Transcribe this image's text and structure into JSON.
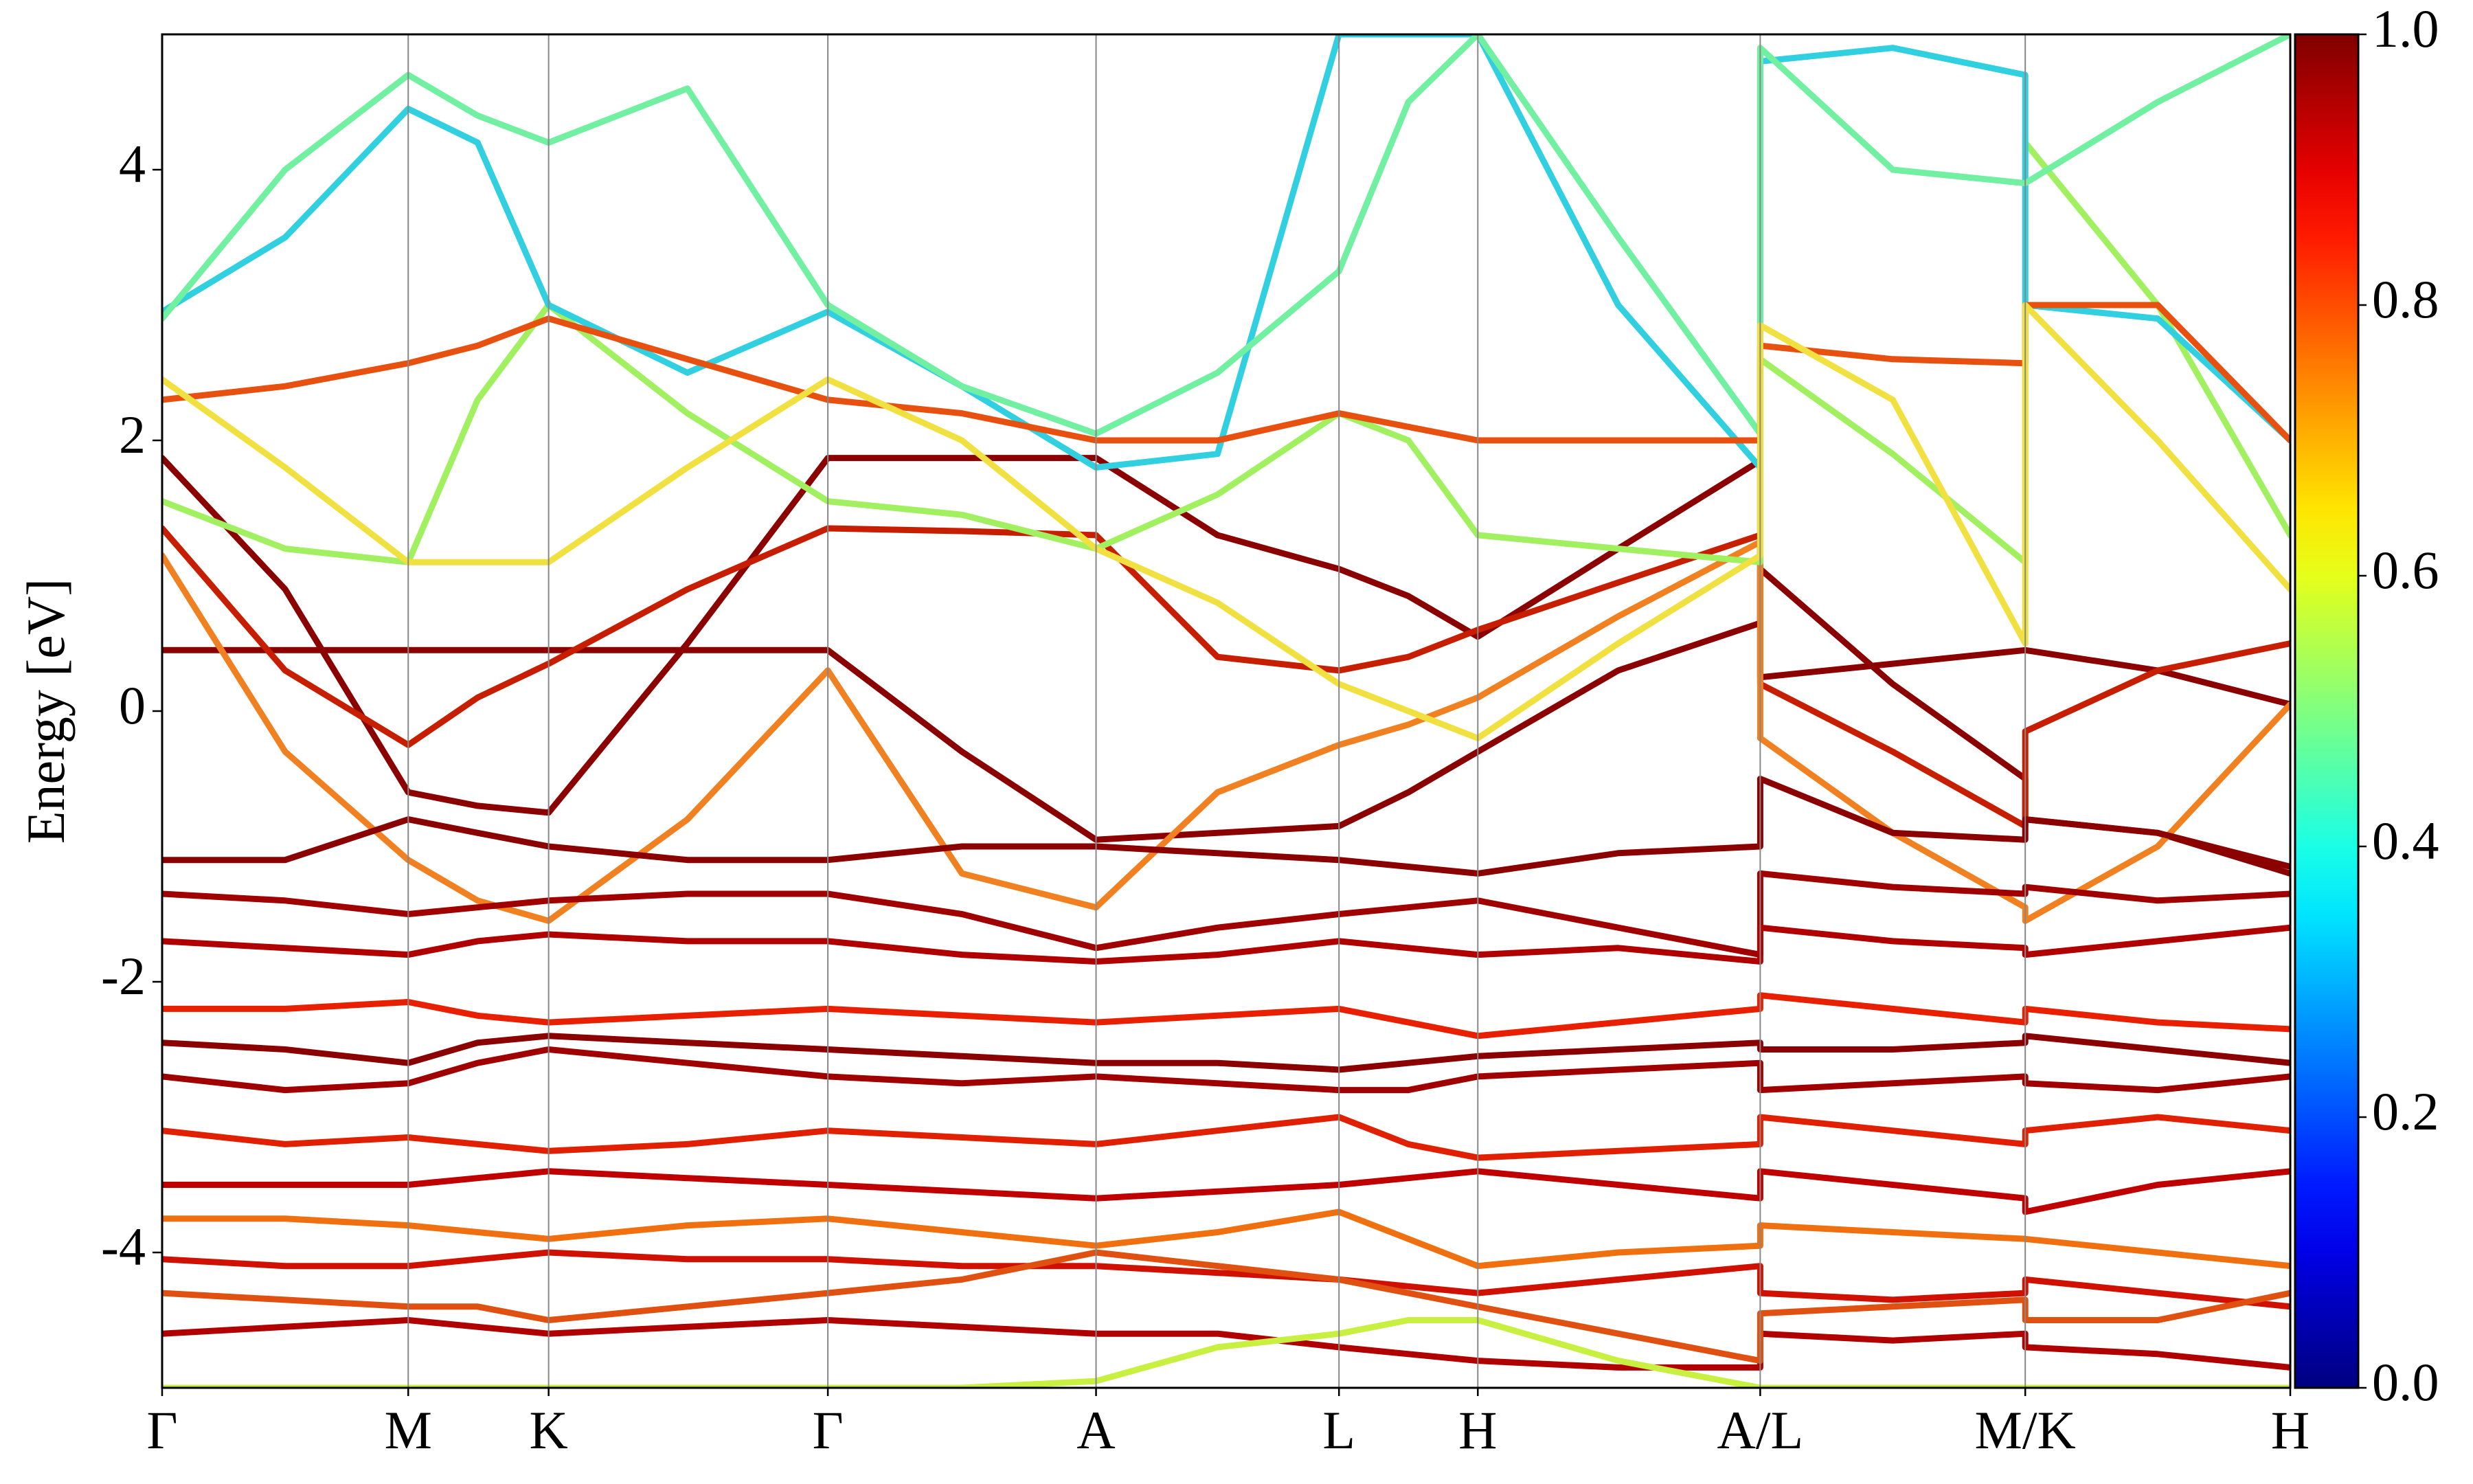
{
  "chart_data": {
    "type": "line",
    "ylabel": "Energy [eV]",
    "x": [
      0,
      78,
      156,
      200,
      245,
      333,
      422,
      507,
      592,
      669,
      746,
      790,
      834,
      923,
      1013,
      1013,
      1097,
      1181,
      1181,
      1265,
      1349
    ],
    "xlim": [
      0,
      1349
    ],
    "xticks": [
      {
        "value": 0,
        "label": "Γ"
      },
      {
        "value": 156,
        "label": "M"
      },
      {
        "value": 245,
        "label": "K"
      },
      {
        "value": 422,
        "label": "Γ"
      },
      {
        "value": 592,
        "label": "A"
      },
      {
        "value": 746,
        "label": "L"
      },
      {
        "value": 834,
        "label": "H"
      },
      {
        "value": 1013,
        "label": "A/L"
      },
      {
        "value": 1181,
        "label": "M/K"
      },
      {
        "value": 1349,
        "label": "H"
      }
    ],
    "ylim": [
      -5,
      5
    ],
    "yticks": [
      -4,
      -2,
      0,
      2,
      4
    ],
    "grid": true,
    "colormap": "jet",
    "zlim": [
      0,
      1
    ],
    "zticks": [
      {
        "value": 0,
        "label": "0.0"
      },
      0.2,
      0.4,
      0.6,
      0.8,
      {
        "value": 1,
        "label": "1.0"
      }
    ],
    "series": [
      {
        "color": "#8b0000",
        "values": [
          1.87,
          0.9,
          -0.6,
          -0.7,
          -0.75,
          0.5,
          1.87,
          1.87,
          1.87,
          1.3,
          1.05,
          0.85,
          0.55,
          1.2,
          1.85,
          0.25,
          0.35,
          0.45,
          0.45,
          0.3,
          0.05
        ]
      },
      {
        "color": "#8b0000",
        "values": [
          0.45,
          0.45,
          0.45,
          0.45,
          0.45,
          0.45,
          0.45,
          -0.3,
          -0.95,
          -0.9,
          -0.85,
          -0.6,
          -0.3,
          0.3,
          0.65,
          1.05,
          0.2,
          -0.5,
          -0.8,
          -0.9,
          -1.2
        ]
      },
      {
        "color": "#c81e00",
        "values": [
          1.35,
          0.3,
          -0.25,
          0.1,
          0.35,
          0.9,
          1.35,
          1.33,
          1.3,
          0.4,
          0.3,
          0.4,
          0.6,
          0.95,
          1.3,
          0.2,
          -0.3,
          -0.85,
          -0.15,
          0.3,
          0.5
        ]
      },
      {
        "color": "#f08020",
        "values": [
          1.15,
          -0.3,
          -1.1,
          -1.4,
          -1.55,
          -0.8,
          0.3,
          -1.2,
          -1.45,
          -0.6,
          -0.25,
          -0.1,
          0.1,
          0.7,
          1.25,
          -0.2,
          -0.9,
          -1.45,
          -1.55,
          -1.0,
          0.05
        ]
      },
      {
        "color": "#a0f060",
        "values": [
          1.55,
          1.2,
          1.1,
          2.3,
          3.0,
          2.2,
          1.55,
          1.45,
          1.2,
          1.6,
          2.2,
          2.0,
          1.3,
          1.2,
          1.1,
          2.6,
          1.9,
          1.1,
          4.2,
          3.0,
          1.3
        ]
      },
      {
        "color": "#30d0e0",
        "values": [
          2.95,
          3.5,
          4.45,
          4.2,
          3.0,
          2.5,
          2.95,
          2.4,
          1.8,
          1.9,
          5.0,
          5.0,
          5.0,
          3.0,
          1.8,
          4.8,
          4.9,
          4.7,
          3.0,
          2.9,
          2.0
        ]
      },
      {
        "color": "#70f0a0",
        "values": [
          2.9,
          4.0,
          4.7,
          4.4,
          4.2,
          4.6,
          3.0,
          2.4,
          2.05,
          2.5,
          3.25,
          4.5,
          5.0,
          3.5,
          2.05,
          4.9,
          4.0,
          3.9,
          3.9,
          4.5,
          5.0
        ]
      },
      {
        "color": "#e85010",
        "values": [
          2.3,
          2.4,
          2.57,
          2.7,
          2.9,
          2.6,
          2.3,
          2.2,
          2.0,
          2.0,
          2.2,
          2.1,
          2.0,
          2.0,
          2.0,
          2.7,
          2.6,
          2.57,
          3.0,
          3.0,
          2.0
        ]
      },
      {
        "color": "#f0e040",
        "values": [
          2.45,
          1.8,
          1.1,
          1.1,
          1.1,
          1.8,
          2.45,
          2.0,
          1.2,
          0.8,
          0.2,
          0.0,
          -0.2,
          0.5,
          1.15,
          2.85,
          2.3,
          0.5,
          3.0,
          2.0,
          0.9
        ]
      },
      {
        "color": "#8b0000",
        "values": [
          -1.1,
          -1.1,
          -0.8,
          -0.9,
          -1.0,
          -1.1,
          -1.1,
          -1.0,
          -1.0,
          -1.05,
          -1.1,
          -1.15,
          -1.2,
          -1.05,
          -1.0,
          -0.5,
          -0.9,
          -0.95,
          -0.8,
          -0.9,
          -1.15
        ]
      },
      {
        "color": "#a00000",
        "values": [
          -1.35,
          -1.4,
          -1.5,
          -1.45,
          -1.4,
          -1.35,
          -1.35,
          -1.5,
          -1.75,
          -1.6,
          -1.5,
          -1.45,
          -1.4,
          -1.6,
          -1.8,
          -1.2,
          -1.3,
          -1.35,
          -1.3,
          -1.4,
          -1.35
        ]
      },
      {
        "color": "#b00000",
        "values": [
          -1.7,
          -1.75,
          -1.8,
          -1.7,
          -1.65,
          -1.7,
          -1.7,
          -1.8,
          -1.85,
          -1.8,
          -1.7,
          -1.75,
          -1.8,
          -1.75,
          -1.85,
          -1.6,
          -1.7,
          -1.75,
          -1.8,
          -1.7,
          -1.6
        ]
      },
      {
        "color": "#e82000",
        "values": [
          -2.2,
          -2.2,
          -2.15,
          -2.25,
          -2.3,
          -2.25,
          -2.2,
          -2.25,
          -2.3,
          -2.25,
          -2.2,
          -2.3,
          -2.4,
          -2.3,
          -2.2,
          -2.1,
          -2.2,
          -2.3,
          -2.2,
          -2.3,
          -2.35
        ]
      },
      {
        "color": "#8b0000",
        "values": [
          -2.45,
          -2.5,
          -2.6,
          -2.45,
          -2.4,
          -2.45,
          -2.5,
          -2.55,
          -2.6,
          -2.6,
          -2.65,
          -2.6,
          -2.55,
          -2.5,
          -2.45,
          -2.5,
          -2.5,
          -2.45,
          -2.4,
          -2.5,
          -2.6
        ]
      },
      {
        "color": "#a00000",
        "values": [
          -2.7,
          -2.8,
          -2.75,
          -2.6,
          -2.5,
          -2.6,
          -2.7,
          -2.75,
          -2.7,
          -2.75,
          -2.8,
          -2.8,
          -2.7,
          -2.65,
          -2.6,
          -2.8,
          -2.75,
          -2.7,
          -2.75,
          -2.8,
          -2.7
        ]
      },
      {
        "color": "#e02000",
        "values": [
          -3.1,
          -3.2,
          -3.15,
          -3.2,
          -3.25,
          -3.2,
          -3.1,
          -3.15,
          -3.2,
          -3.1,
          -3.0,
          -3.2,
          -3.3,
          -3.25,
          -3.2,
          -3.0,
          -3.1,
          -3.2,
          -3.1,
          -3.0,
          -3.1
        ]
      },
      {
        "color": "#c00000",
        "values": [
          -3.5,
          -3.5,
          -3.5,
          -3.45,
          -3.4,
          -3.45,
          -3.5,
          -3.55,
          -3.6,
          -3.55,
          -3.5,
          -3.45,
          -3.4,
          -3.5,
          -3.6,
          -3.4,
          -3.5,
          -3.6,
          -3.7,
          -3.5,
          -3.4
        ]
      },
      {
        "color": "#f07010",
        "values": [
          -3.75,
          -3.75,
          -3.8,
          -3.85,
          -3.9,
          -3.8,
          -3.75,
          -3.85,
          -3.95,
          -3.85,
          -3.7,
          -3.9,
          -4.1,
          -4.0,
          -3.95,
          -3.8,
          -3.85,
          -3.9,
          -3.9,
          -4.0,
          -4.1
        ]
      },
      {
        "color": "#d01000",
        "values": [
          -4.05,
          -4.1,
          -4.1,
          -4.05,
          -4.0,
          -4.05,
          -4.05,
          -4.1,
          -4.1,
          -4.15,
          -4.2,
          -4.25,
          -4.3,
          -4.2,
          -4.1,
          -4.3,
          -4.35,
          -4.3,
          -4.2,
          -4.3,
          -4.4
        ]
      },
      {
        "color": "#b00000",
        "values": [
          -4.6,
          -4.55,
          -4.5,
          -4.55,
          -4.6,
          -4.55,
          -4.5,
          -4.55,
          -4.6,
          -4.6,
          -4.7,
          -4.75,
          -4.8,
          -4.85,
          -4.85,
          -4.6,
          -4.65,
          -4.6,
          -4.7,
          -4.75,
          -4.85
        ]
      },
      {
        "color": "#e05010",
        "values": [
          -4.3,
          -4.35,
          -4.4,
          -4.4,
          -4.5,
          -4.4,
          -4.3,
          -4.2,
          -4.0,
          -4.1,
          -4.2,
          -4.3,
          -4.4,
          -4.6,
          -4.8,
          -4.45,
          -4.4,
          -4.35,
          -4.5,
          -4.5,
          -4.3
        ]
      },
      {
        "color": "#c8f040",
        "values": [
          -5.0,
          -5.0,
          -5.0,
          -5.0,
          -5.0,
          -5.0,
          -5.0,
          -5.0,
          -4.95,
          -4.7,
          -4.6,
          -4.5,
          -4.5,
          -4.8,
          -5.0,
          -5.0,
          -5.0,
          -5.0,
          -5.0,
          -5.0,
          -5.0
        ]
      }
    ]
  }
}
